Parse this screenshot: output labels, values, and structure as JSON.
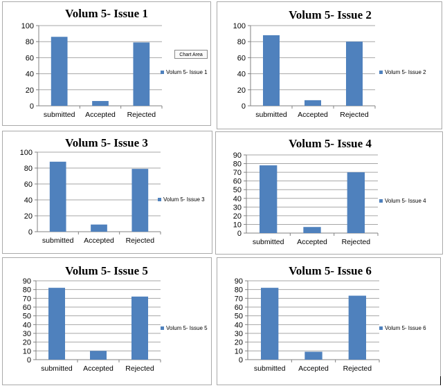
{
  "colors": {
    "bar": "#4f81bd",
    "grid": "#a6a6a6",
    "axis": "#808080"
  },
  "tooltip": "Chart Area",
  "chart_data": [
    {
      "type": "bar",
      "title": "Volum 5- Issue 1",
      "categories": [
        "submitted",
        "Accepted",
        "Rejected"
      ],
      "series": [
        {
          "name": "Volum 5- Issue 1",
          "values": [
            86,
            6,
            79
          ]
        }
      ],
      "ylim": [
        0,
        100
      ],
      "ystep": 20,
      "grid": true,
      "legend": "right"
    },
    {
      "type": "bar",
      "title": "Volum 5- Issue 2",
      "categories": [
        "submitted",
        "Accepted",
        "Rejected"
      ],
      "series": [
        {
          "name": "Volum 5- Issue 2",
          "values": [
            88,
            7,
            80
          ]
        }
      ],
      "ylim": [
        0,
        100
      ],
      "ystep": 20,
      "grid": true,
      "legend": "right"
    },
    {
      "type": "bar",
      "title": "Volum 5- Issue 3",
      "categories": [
        "submitted",
        "Accepted",
        "Rejected"
      ],
      "series": [
        {
          "name": "Volum 5- Issue 3",
          "values": [
            88,
            9,
            79
          ]
        }
      ],
      "ylim": [
        0,
        100
      ],
      "ystep": 20,
      "grid": true,
      "legend": "right"
    },
    {
      "type": "bar",
      "title": "Volum 5- Issue 4",
      "categories": [
        "submitted",
        "Accepted",
        "Rejected"
      ],
      "series": [
        {
          "name": "Volum 5- Issue 4",
          "values": [
            78,
            7,
            70
          ]
        }
      ],
      "ylim": [
        0,
        90
      ],
      "ystep": 10,
      "grid": true,
      "legend": "right"
    },
    {
      "type": "bar",
      "title": "Volum 5- Issue 5",
      "categories": [
        "submitted",
        "Accepted",
        "Rejected"
      ],
      "series": [
        {
          "name": "Volum 5- Issue 5",
          "values": [
            82,
            10,
            72
          ]
        }
      ],
      "ylim": [
        0,
        90
      ],
      "ystep": 10,
      "grid": true,
      "legend": "right"
    },
    {
      "type": "bar",
      "title": "Volum 5- Issue 6",
      "categories": [
        "submitted",
        "Accepted",
        "Rejected"
      ],
      "series": [
        {
          "name": "Volum 5- Issue 6",
          "values": [
            82,
            9,
            73
          ]
        }
      ],
      "ylim": [
        0,
        90
      ],
      "ystep": 10,
      "grid": true,
      "legend": "right"
    }
  ]
}
